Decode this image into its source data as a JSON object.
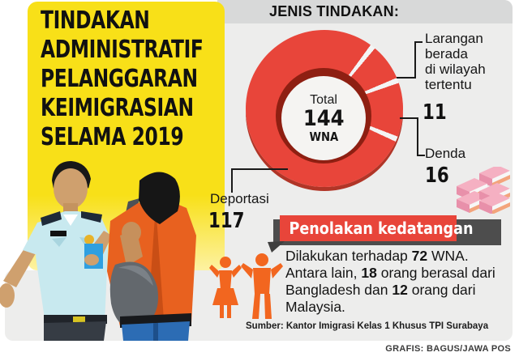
{
  "title": {
    "lines": [
      "TINDAKAN",
      "ADMINISTRATIF",
      "PELANGGARAN",
      "KEIMIGRASIAN",
      "SELAMA 2019"
    ]
  },
  "chart": {
    "header": "JENIS TINDAKAN:",
    "center": {
      "label": "Total",
      "value": "144",
      "unit": "WNA"
    },
    "callouts": {
      "larangan": {
        "lines": [
          "Larangan",
          "berada",
          "di wilayah",
          "tertentu"
        ],
        "value": "11"
      },
      "denda": {
        "label": "Denda",
        "value": "16"
      },
      "deportasi": {
        "label": "Deportasi",
        "value": "117"
      }
    }
  },
  "banner": {
    "label": "Penolakan kedatangan"
  },
  "note": {
    "parts": [
      {
        "text": "Dilakukan terhadap ",
        "bold": false
      },
      {
        "text": "72",
        "bold": true
      },
      {
        "text": " WNA. Antara lain, ",
        "bold": false
      },
      {
        "text": "18",
        "bold": true
      },
      {
        "text": " orang berasal dari Bangladesh dan ",
        "bold": false
      },
      {
        "text": "12",
        "bold": true
      },
      {
        "text": " orang dari Malaysia.",
        "bold": false
      }
    ]
  },
  "source": "Sumber: Kantor Imigrasi Kelas 1 Khusus TPI Surabaya",
  "credit": "GRAFIS: BAGUS/JAWA POS",
  "colors": {
    "red": "#e8453a",
    "dark_red": "#8e1f12",
    "yellow": "#f8e018",
    "banner_shadow": "#4d4d4d",
    "figure_orange": "#f2661f",
    "panel_gray": "#ededec",
    "band_gray": "#d8d9d9"
  },
  "chart_data": {
    "type": "pie",
    "donut": true,
    "title": "JENIS TINDAKAN:",
    "center_label": "Total 144 WNA",
    "total": 144,
    "unit": "WNA",
    "categories": [
      "Deportasi",
      "Larangan berada di wilayah tertentu",
      "Denda"
    ],
    "values": [
      117,
      11,
      16
    ],
    "color": "#e8453a",
    "legend_position": "callouts"
  }
}
